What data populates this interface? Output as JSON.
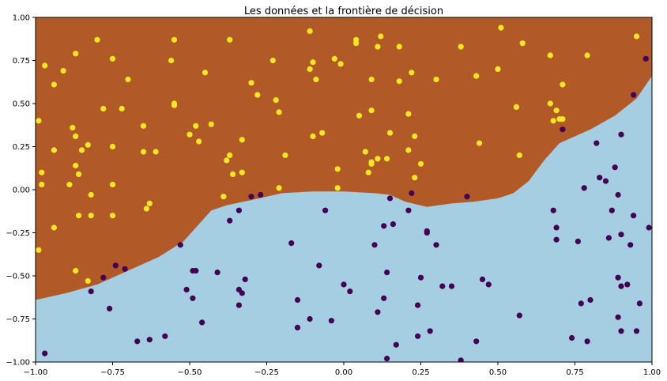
{
  "chart_data": {
    "type": "scatter",
    "title": "Les données et la frontière de décision",
    "xlim": [
      -1,
      1
    ],
    "ylim": [
      -1,
      1
    ],
    "x_ticks": [
      -1.0,
      -0.75,
      -0.5,
      -0.25,
      0.0,
      0.25,
      0.5,
      0.75,
      1.0
    ],
    "x_tick_labels": [
      "−1.00",
      "−0.75",
      "−0.50",
      "−0.25",
      "0.00",
      "0.25",
      "0.50",
      "0.75",
      "1.00"
    ],
    "y_ticks": [
      1.0,
      0.75,
      0.5,
      0.25,
      0.0,
      -0.25,
      -0.5,
      -0.75,
      -1.0
    ],
    "y_tick_labels": [
      "1.00",
      "0.75",
      "0.50",
      "0.25",
      "0.00",
      "−0.25",
      "−0.50",
      "−0.75",
      "−1.00"
    ],
    "grid": false,
    "regions": {
      "upper_color": "#b15a27",
      "lower_color": "#a6cee3",
      "boundary": [
        [
          -1.0,
          -0.64
        ],
        [
          -0.9,
          -0.6
        ],
        [
          -0.8,
          -0.55
        ],
        [
          -0.7,
          -0.47
        ],
        [
          -0.6,
          -0.39
        ],
        [
          -0.52,
          -0.3
        ],
        [
          -0.47,
          -0.2
        ],
        [
          -0.43,
          -0.12
        ],
        [
          -0.38,
          -0.09
        ],
        [
          -0.3,
          -0.06
        ],
        [
          -0.2,
          -0.02
        ],
        [
          -0.1,
          -0.01
        ],
        [
          0.0,
          -0.01
        ],
        [
          0.1,
          -0.02
        ],
        [
          0.15,
          -0.03
        ],
        [
          0.2,
          -0.07
        ],
        [
          0.27,
          -0.1
        ],
        [
          0.35,
          -0.08
        ],
        [
          0.42,
          -0.07
        ],
        [
          0.5,
          -0.05
        ],
        [
          0.55,
          -0.02
        ],
        [
          0.6,
          0.05
        ],
        [
          0.65,
          0.17
        ],
        [
          0.7,
          0.27
        ],
        [
          0.8,
          0.35
        ],
        [
          0.88,
          0.43
        ],
        [
          0.95,
          0.53
        ],
        [
          1.0,
          0.66
        ]
      ]
    },
    "series": [
      {
        "color": "#fde725",
        "points": [
          [
            -0.99,
            0.4
          ],
          [
            -0.97,
            0.72
          ],
          [
            -0.94,
            0.61
          ],
          [
            -0.91,
            0.69
          ],
          [
            -0.87,
            0.79
          ],
          [
            -0.8,
            0.87
          ],
          [
            -0.75,
            0.76
          ],
          [
            -0.7,
            0.64
          ],
          [
            -0.55,
            0.87
          ],
          [
            -0.56,
            0.75
          ],
          [
            -0.55,
            0.5
          ],
          [
            -0.55,
            0.49
          ],
          [
            -0.45,
            0.68
          ],
          [
            -0.37,
            0.87
          ],
          [
            -0.3,
            0.62
          ],
          [
            -0.28,
            0.55
          ],
          [
            -0.23,
            0.75
          ],
          [
            -0.22,
            0.52
          ],
          [
            -0.11,
            0.92
          ],
          [
            -0.11,
            0.7
          ],
          [
            -0.1,
            0.74
          ],
          [
            -0.09,
            0.64
          ],
          [
            -0.03,
            0.76
          ],
          [
            -0.01,
            0.73
          ],
          [
            0.04,
            0.87
          ],
          [
            0.04,
            0.85
          ],
          [
            0.11,
            0.83
          ],
          [
            0.12,
            0.89
          ],
          [
            0.18,
            0.83
          ],
          [
            0.18,
            0.63
          ],
          [
            0.22,
            0.68
          ],
          [
            0.3,
            0.64
          ],
          [
            0.38,
            0.83
          ],
          [
            0.43,
            0.66
          ],
          [
            0.5,
            0.7
          ],
          [
            0.51,
            0.94
          ],
          [
            0.58,
            0.85
          ],
          [
            0.67,
            0.78
          ],
          [
            0.79,
            0.78
          ],
          [
            0.95,
            0.89
          ],
          [
            -0.78,
            0.47
          ],
          [
            -0.72,
            0.47
          ],
          [
            -0.65,
            0.37
          ],
          [
            -0.48,
            0.37
          ],
          [
            -0.43,
            0.38
          ],
          [
            -0.5,
            0.32
          ],
          [
            -0.47,
            0.28
          ],
          [
            -0.37,
            0.2
          ],
          [
            -0.38,
            0.17
          ],
          [
            -0.36,
            0.09
          ],
          [
            -0.33,
            0.1
          ],
          [
            -0.33,
            0.29
          ],
          [
            -0.21,
            0.45
          ],
          [
            -0.19,
            0.2
          ],
          [
            -0.1,
            0.31
          ],
          [
            -0.07,
            0.33
          ],
          [
            0.05,
            0.43
          ],
          [
            0.07,
            0.22
          ],
          [
            0.09,
            0.46
          ],
          [
            0.09,
            0.15
          ],
          [
            0.09,
            0.16
          ],
          [
            0.11,
            0.18
          ],
          [
            0.14,
            0.18
          ],
          [
            0.15,
            0.33
          ],
          [
            0.21,
            0.44
          ],
          [
            0.21,
            0.23
          ],
          [
            0.23,
            0.31
          ],
          [
            0.25,
            0.15
          ],
          [
            0.23,
            0.07
          ],
          [
            0.08,
            0.1
          ],
          [
            0.09,
            0.64
          ],
          [
            0.44,
            0.27
          ],
          [
            0.56,
            0.48
          ],
          [
            0.57,
            0.2
          ],
          [
            0.67,
            0.5
          ],
          [
            0.68,
            0.4
          ],
          [
            0.69,
            0.46
          ],
          [
            0.7,
            0.41
          ],
          [
            0.71,
            0.61
          ],
          [
            0.71,
            0.41
          ],
          [
            -0.98,
            0.1
          ],
          [
            -0.98,
            0.03
          ],
          [
            -0.94,
            0.23
          ],
          [
            -0.88,
            0.36
          ],
          [
            -0.87,
            0.31
          ],
          [
            -0.85,
            0.23
          ],
          [
            -0.83,
            0.26
          ],
          [
            -0.87,
            0.14
          ],
          [
            -0.86,
            0.09
          ],
          [
            -0.89,
            0.03
          ],
          [
            -0.82,
            -0.03
          ],
          [
            -0.75,
            0.25
          ],
          [
            -0.75,
            0.03
          ],
          [
            -0.65,
            0.22
          ],
          [
            -0.61,
            0.22
          ],
          [
            -0.63,
            -0.08
          ],
          [
            -0.64,
            -0.11
          ],
          [
            -0.86,
            -0.15
          ],
          [
            -0.82,
            -0.15
          ],
          [
            -0.75,
            -0.15
          ],
          [
            -0.94,
            -0.22
          ],
          [
            -0.99,
            -0.35
          ],
          [
            -0.87,
            -0.47
          ],
          [
            -0.83,
            -0.53
          ],
          [
            -0.02,
            0.01
          ],
          [
            -0.02,
            0.12
          ],
          [
            -0.21,
            0.01
          ],
          [
            -0.39,
            -0.04
          ]
        ]
      },
      {
        "color": "#440154",
        "points": [
          [
            -0.97,
            -0.95
          ],
          [
            -0.82,
            -0.59
          ],
          [
            -0.78,
            -0.51
          ],
          [
            -0.76,
            -0.69
          ],
          [
            -0.74,
            -0.44
          ],
          [
            -0.71,
            -0.46
          ],
          [
            -0.67,
            -0.88
          ],
          [
            -0.63,
            -0.87
          ],
          [
            -0.58,
            -0.85
          ],
          [
            -0.53,
            -0.32
          ],
          [
            -0.51,
            -0.58
          ],
          [
            -0.49,
            -0.47
          ],
          [
            -0.49,
            -0.63
          ],
          [
            -0.48,
            -0.47
          ],
          [
            -0.46,
            -0.77
          ],
          [
            -0.41,
            -0.48
          ],
          [
            -0.37,
            -0.18
          ],
          [
            -0.34,
            -0.12
          ],
          [
            -0.34,
            -0.67
          ],
          [
            -0.34,
            -0.58
          ],
          [
            -0.33,
            -0.6
          ],
          [
            -0.32,
            -0.52
          ],
          [
            -0.3,
            -0.04
          ],
          [
            -0.27,
            -0.03
          ],
          [
            -0.17,
            -0.31
          ],
          [
            -0.15,
            -0.64
          ],
          [
            -0.15,
            -0.8
          ],
          [
            -0.11,
            -0.75
          ],
          [
            -0.08,
            -0.44
          ],
          [
            -0.06,
            -0.12
          ],
          [
            -0.04,
            -0.76
          ],
          [
            0.0,
            -0.55
          ],
          [
            0.02,
            -0.59
          ],
          [
            0.1,
            -0.32
          ],
          [
            0.11,
            -0.71
          ],
          [
            0.13,
            -0.21
          ],
          [
            0.13,
            -0.63
          ],
          [
            0.14,
            -0.98
          ],
          [
            0.14,
            -0.48
          ],
          [
            0.15,
            -0.05
          ],
          [
            0.16,
            -0.2
          ],
          [
            0.17,
            -0.9
          ],
          [
            0.21,
            -0.12
          ],
          [
            0.22,
            -0.02
          ],
          [
            0.24,
            -0.67
          ],
          [
            0.24,
            -0.85
          ],
          [
            0.25,
            -0.51
          ],
          [
            0.27,
            -0.24
          ],
          [
            0.27,
            -0.25
          ],
          [
            0.28,
            -0.82
          ],
          [
            0.3,
            -0.32
          ],
          [
            0.32,
            -0.56
          ],
          [
            0.35,
            -0.56
          ],
          [
            0.38,
            -0.99
          ],
          [
            0.4,
            -0.04
          ],
          [
            0.43,
            -0.88
          ],
          [
            0.45,
            -0.52
          ],
          [
            0.47,
            -0.55
          ],
          [
            0.57,
            -0.73
          ],
          [
            0.68,
            -0.12
          ],
          [
            0.69,
            -0.22
          ],
          [
            0.69,
            -0.29
          ],
          [
            0.71,
            0.35
          ],
          [
            0.74,
            -0.86
          ],
          [
            0.76,
            -0.3
          ],
          [
            0.77,
            -0.66
          ],
          [
            0.78,
            0.01
          ],
          [
            0.79,
            -0.88
          ],
          [
            0.8,
            -0.64
          ],
          [
            0.82,
            0.27
          ],
          [
            0.83,
            0.07
          ],
          [
            0.85,
            0.05
          ],
          [
            0.86,
            -0.28
          ],
          [
            0.87,
            -0.12
          ],
          [
            0.88,
            0.13
          ],
          [
            0.89,
            -0.74
          ],
          [
            0.89,
            -0.03
          ],
          [
            0.89,
            -0.51
          ],
          [
            0.9,
            -0.56
          ],
          [
            0.9,
            -0.82
          ],
          [
            0.9,
            -0.26
          ],
          [
            0.9,
            0.32
          ],
          [
            0.92,
            -0.55
          ],
          [
            0.93,
            -0.32
          ],
          [
            0.94,
            0.55
          ],
          [
            0.94,
            -0.15
          ],
          [
            0.95,
            -0.82
          ],
          [
            0.96,
            -0.66
          ],
          [
            0.98,
            0.76
          ],
          [
            0.99,
            -0.22
          ]
        ]
      }
    ]
  }
}
